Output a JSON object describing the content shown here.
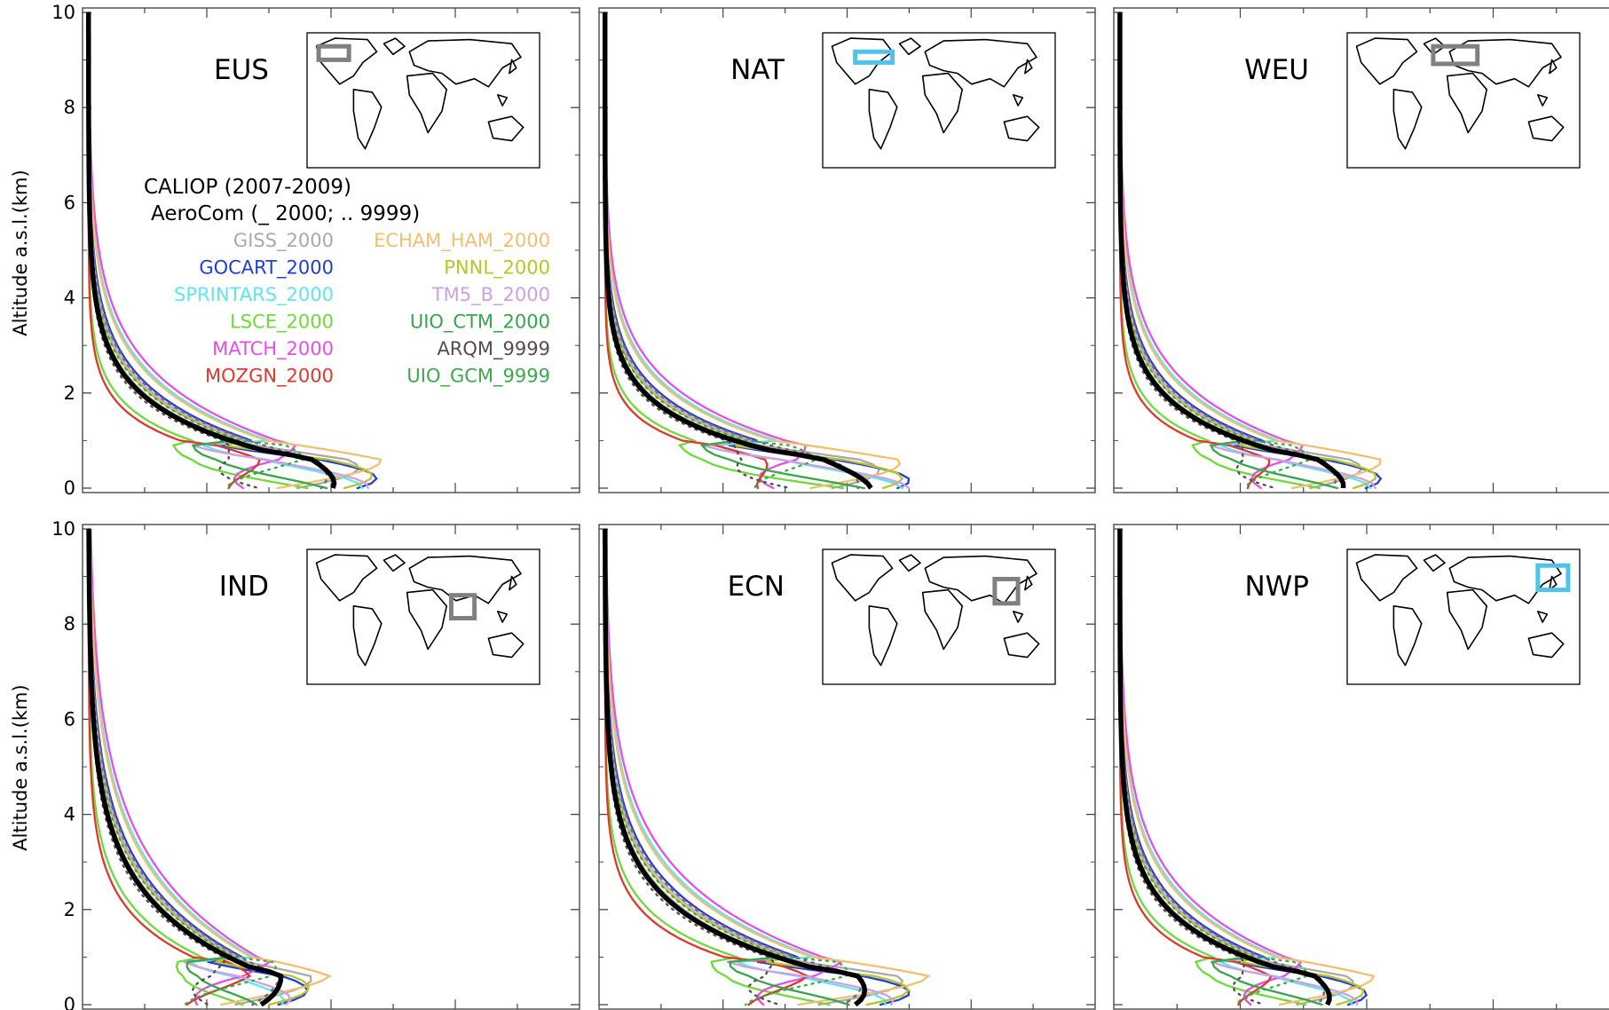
{
  "figure": {
    "ylabel": "Altitude a.s.l.(km)",
    "legend": {
      "title1": "CALIOP (2007-2009)",
      "title2": "AeroCom (_ 2000; .. 9999)",
      "entries": [
        {
          "label": "GISS_2000",
          "color": "#a9a9a9"
        },
        {
          "label": "GOCART_2000",
          "color": "#1f3fd6"
        },
        {
          "label": "SPRINTARS_2000",
          "color": "#5ee6ef"
        },
        {
          "label": "LSCE_2000",
          "color": "#6fd93a"
        },
        {
          "label": "MATCH_2000",
          "color": "#e64ee6"
        },
        {
          "label": "MOZGN_2000",
          "color": "#e0372d"
        },
        {
          "label": "ECHAM_HAM_2000",
          "color": "#f0c070"
        },
        {
          "label": "PNNL_2000",
          "color": "#b9c428"
        },
        {
          "label": "TM5_B_2000",
          "color": "#cfa0e0"
        },
        {
          "label": "UIO_CTM_2000",
          "color": "#36a64a"
        },
        {
          "label": "ARQM_9999",
          "color": "#5a4a4a"
        },
        {
          "label": "UIO_GCM_9999",
          "color": "#3caa4c"
        }
      ]
    }
  },
  "chart_data": [
    {
      "type": "line",
      "region": "EUS",
      "box_color": "#808080",
      "ylim": [
        0,
        10
      ],
      "yticks": [
        0,
        2,
        4,
        6,
        8,
        10
      ],
      "shape": {
        "h": 1.0,
        "tail": 0.78,
        "peak": 0.55
      }
    },
    {
      "type": "line",
      "region": "NAT",
      "box_color": "#4fc3ea",
      "ylim": [
        0,
        10
      ],
      "yticks": [
        0,
        2,
        4,
        6,
        8,
        10
      ],
      "shape": {
        "h": 0.85,
        "tail": 0.85,
        "peak": 0.9
      }
    },
    {
      "type": "line",
      "region": "WEU",
      "box_color": "#808080",
      "ylim": [
        0,
        10
      ],
      "yticks": [
        0,
        2,
        4,
        6,
        8,
        10
      ],
      "shape": {
        "h": 0.95,
        "tail": 0.7,
        "peak": 0.65
      }
    },
    {
      "type": "line",
      "region": "IND",
      "box_color": "#808080",
      "ylim": [
        0,
        10
      ],
      "yticks": [
        0,
        2,
        4,
        6,
        8,
        10
      ],
      "shape": {
        "h": 1.5,
        "tail": 0.55,
        "peak": 0.5
      }
    },
    {
      "type": "line",
      "region": "ECN",
      "box_color": "#808080",
      "ylim": [
        0,
        10
      ],
      "yticks": [
        0,
        2,
        4,
        6,
        8,
        10
      ],
      "shape": {
        "h": 1.2,
        "tail": 0.8,
        "peak": 0.8
      }
    },
    {
      "type": "line",
      "region": "NWP",
      "box_color": "#4fc3ea",
      "ylim": [
        0,
        10
      ],
      "yticks": [
        0,
        2,
        4,
        6,
        8,
        10
      ],
      "shape": {
        "h": 1.05,
        "tail": 0.65,
        "peak": 0.6
      }
    }
  ]
}
